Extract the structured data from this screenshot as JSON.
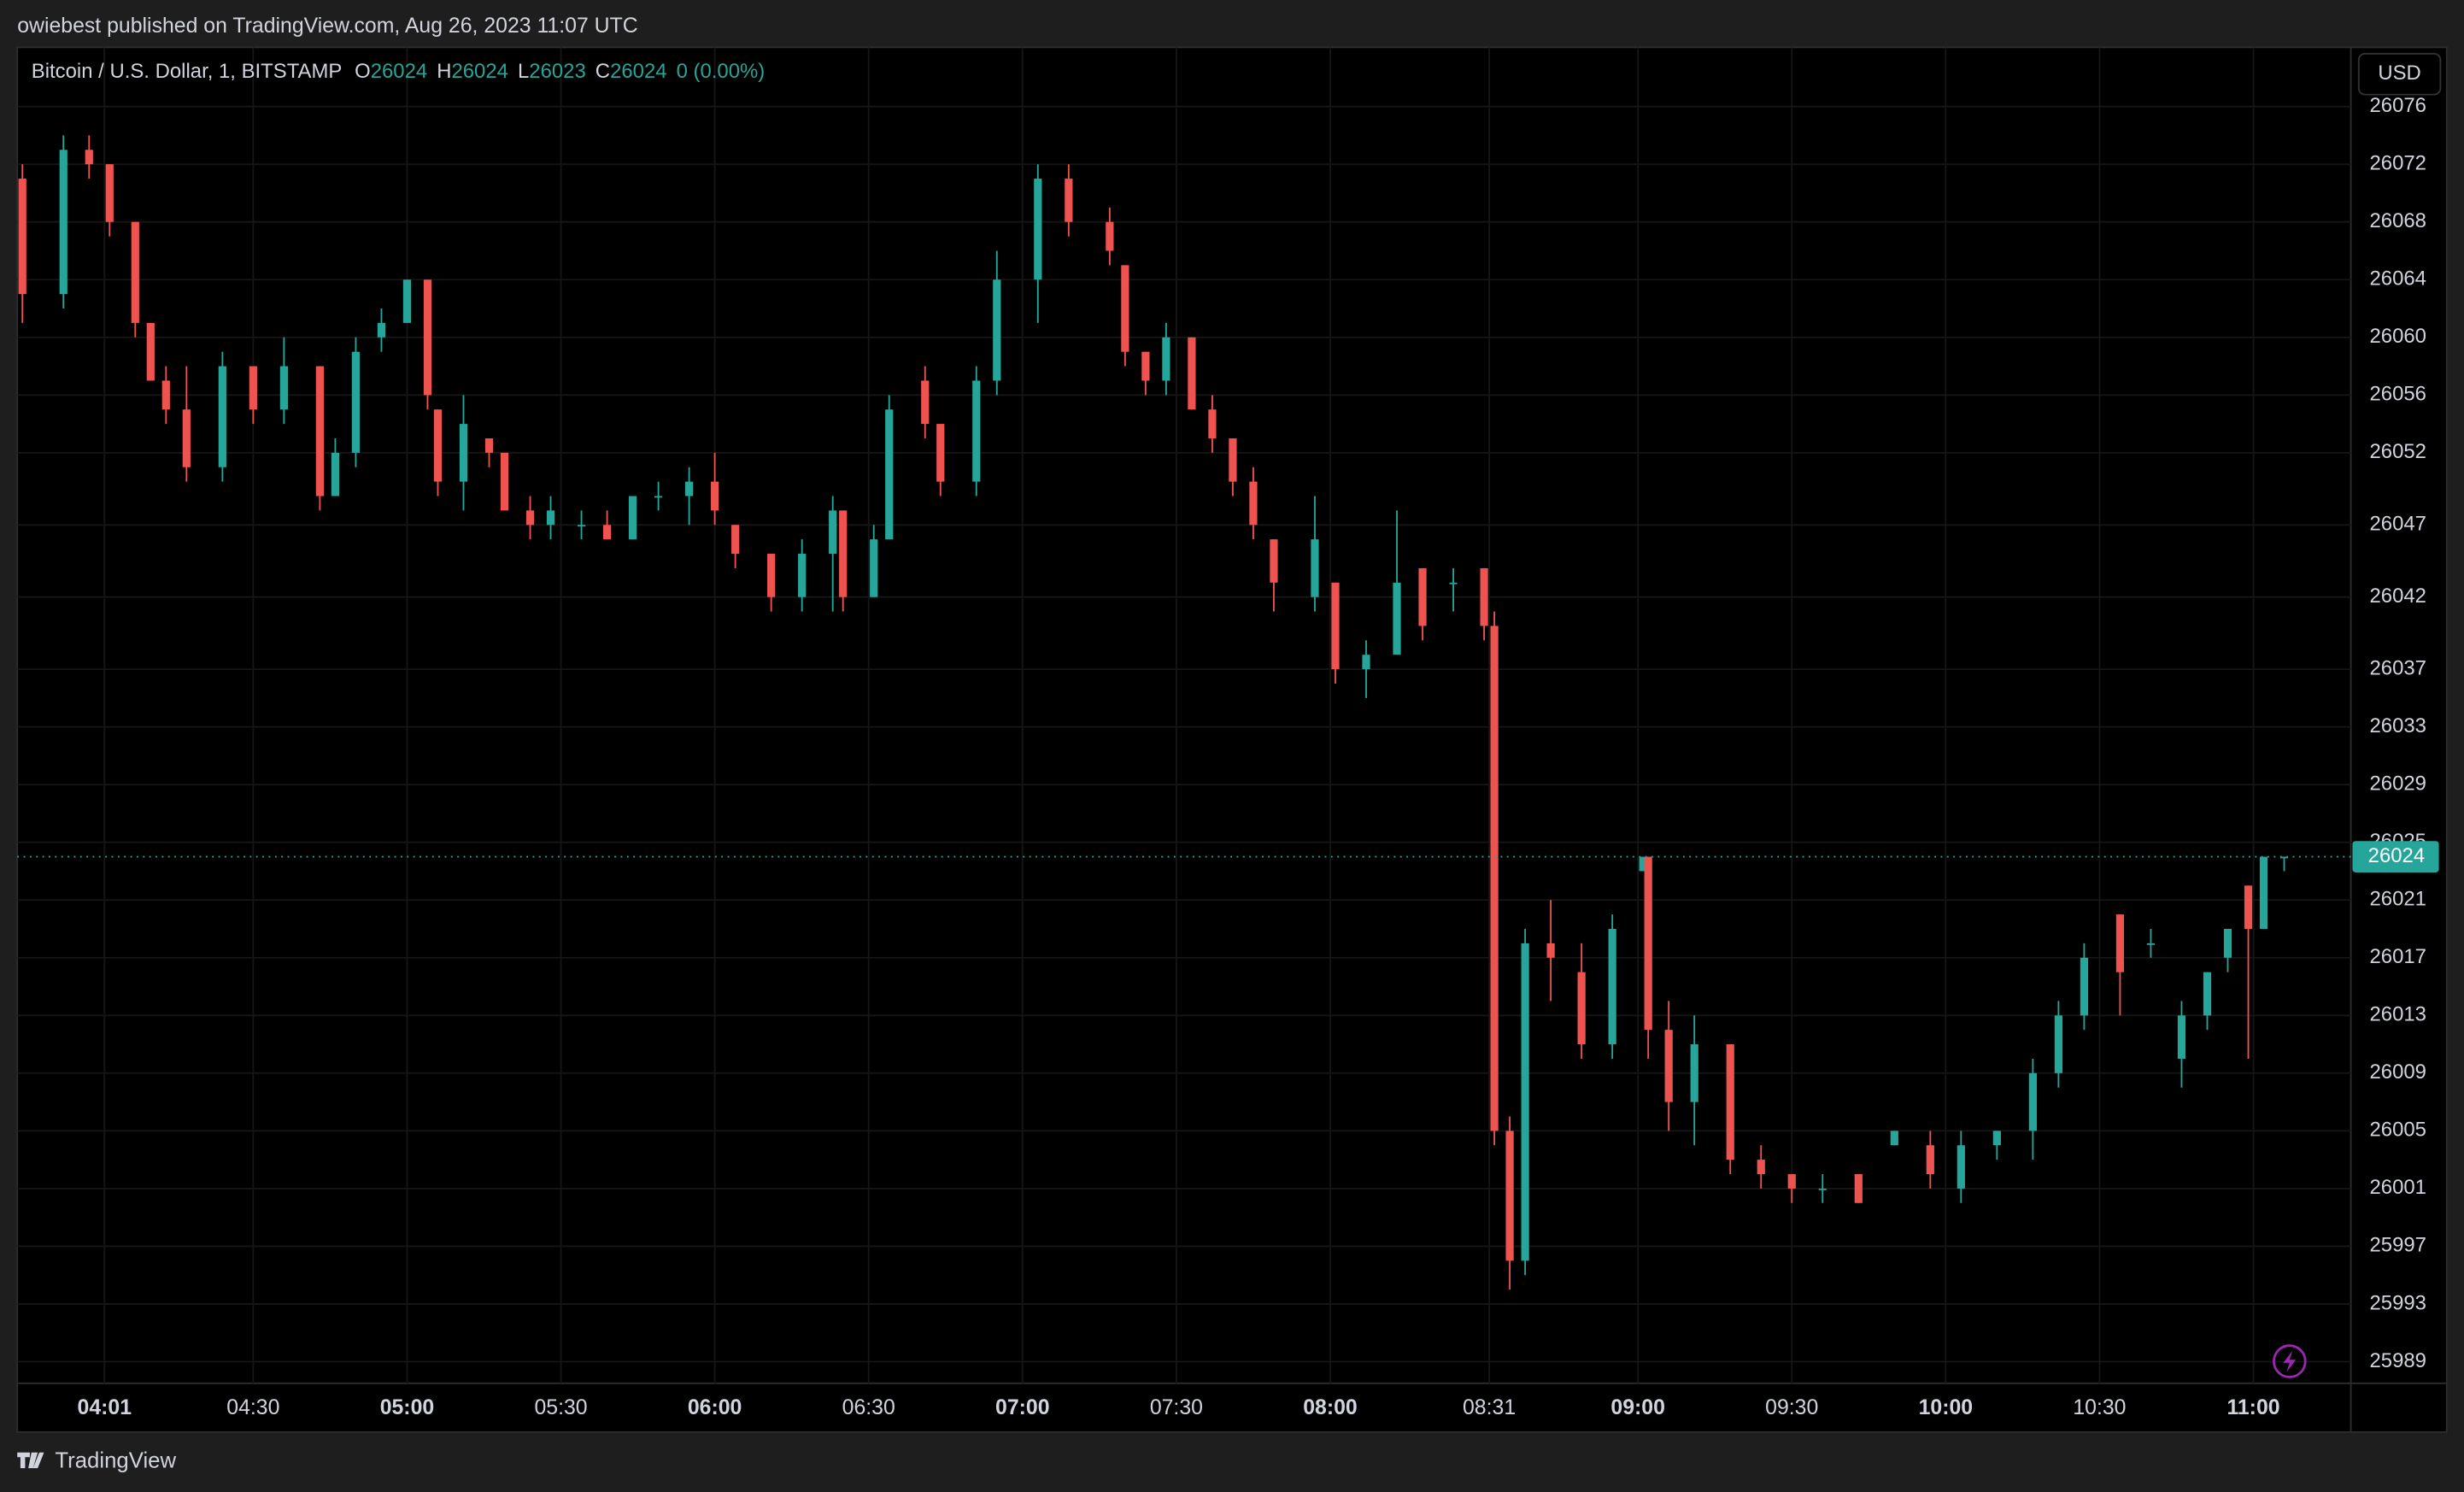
{
  "header": {
    "byline": "owiebest published on TradingView.com, Aug 26, 2023 11:07 UTC"
  },
  "footer": {
    "brand": "TradingView"
  },
  "chart_data": {
    "type": "candlestick",
    "legend": {
      "symbol": "Bitcoin / U.S. Dollar, 1, BITSTAMP",
      "items": [
        {
          "label": "O",
          "value": 26024
        },
        {
          "label": "H",
          "value": 26024
        },
        {
          "label": "L",
          "value": 26023
        },
        {
          "label": "C",
          "value": 26024
        }
      ],
      "change": "0 (0.00%)"
    },
    "currency": "USD",
    "last_price": 26024,
    "up_color": "#26a69a",
    "down_color": "#ef5350",
    "grid": true,
    "xlim": [
      "03:44",
      "11:19"
    ],
    "xticks": [
      "04:01",
      "04:30",
      "05:00",
      "05:30",
      "06:00",
      "06:30",
      "07:00",
      "07:30",
      "08:00",
      "08:31",
      "09:00",
      "09:30",
      "10:00",
      "10:30",
      "11:00"
    ],
    "ylim": [
      25987.5,
      26080.1
    ],
    "yticks": [
      26076,
      26072,
      26068,
      26064,
      26060,
      26056,
      26052,
      26047,
      26042,
      26037,
      26033,
      26029,
      26025,
      26021,
      26017,
      26013,
      26009,
      26005,
      26001,
      25997,
      25993,
      25989
    ],
    "x": [
      "03:45",
      "03:53",
      "03:58",
      "04:02",
      "04:07",
      "04:10",
      "04:13",
      "04:17",
      "04:24",
      "04:30",
      "04:36",
      "04:43",
      "04:46",
      "04:50",
      "04:55",
      "05:00",
      "05:04",
      "05:06",
      "05:11",
      "05:16",
      "05:19",
      "05:24",
      "05:28",
      "05:34",
      "05:39",
      "05:44",
      "05:49",
      "05:55",
      "06:00",
      "06:04",
      "06:11",
      "06:17",
      "06:23",
      "06:25",
      "06:31",
      "06:34",
      "06:41",
      "06:44",
      "06:51",
      "06:55",
      "07:03",
      "07:09",
      "07:17",
      "07:20",
      "07:24",
      "07:28",
      "07:33",
      "07:37",
      "07:41",
      "07:45",
      "07:49",
      "07:57",
      "08:01",
      "08:07",
      "08:13",
      "08:18",
      "08:24",
      "08:30",
      "08:32",
      "08:35",
      "08:38",
      "08:43",
      "08:49",
      "08:55",
      "09:01",
      "09:02",
      "09:06",
      "09:11",
      "09:18",
      "09:24",
      "09:30",
      "09:36",
      "09:43",
      "09:50",
      "09:57",
      "10:03",
      "10:10",
      "10:17",
      "10:22",
      "10:27",
      "10:34",
      "10:40",
      "10:46",
      "10:51",
      "10:55",
      "10:59",
      "11:02",
      "11:06"
    ],
    "open": [
      26071,
      26063,
      26073,
      26072,
      26068,
      26061,
      26057,
      26055,
      26051,
      26058,
      26055,
      26058,
      26049,
      26052,
      26060,
      26061,
      26064,
      26055,
      26050,
      26053,
      26052,
      26048,
      26047,
      26047,
      26047,
      26046,
      26049,
      26049,
      26050,
      26047,
      26045,
      26042,
      26045,
      26048,
      26042,
      26046,
      26057,
      26054,
      26050,
      26057,
      26064,
      26071,
      26068,
      26065,
      26059,
      26057,
      26060,
      26055,
      26053,
      26050,
      26046,
      26042,
      26043,
      26037,
      26038,
      26044,
      26043,
      26044,
      26040,
      26005,
      25996,
      26018,
      26016,
      26011,
      26023,
      26024,
      26012,
      26007,
      26011,
      26003,
      26002,
      26001,
      26002,
      26004,
      26004,
      26001,
      26004,
      26005,
      26009,
      26013,
      26020,
      26018,
      26010,
      26013,
      26017,
      26022,
      26019,
      26024
    ],
    "high": [
      26072,
      26074,
      26074,
      26072,
      26068,
      26061,
      26058,
      26058,
      26059,
      26058,
      26060,
      26058,
      26053,
      26060,
      26062,
      26064,
      26064,
      26055,
      26056,
      26053,
      26052,
      26049,
      26049,
      26048,
      26048,
      26049,
      26050,
      26051,
      26052,
      26047,
      26045,
      26046,
      26049,
      26048,
      26047,
      26056,
      26058,
      26054,
      26058,
      26066,
      26072,
      26072,
      26069,
      26065,
      26059,
      26061,
      26060,
      26056,
      26053,
      26051,
      26046,
      26049,
      26043,
      26039,
      26048,
      26044,
      26044,
      26044,
      26041,
      26006,
      26019,
      26021,
      26018,
      26020,
      26024,
      26024,
      26014,
      26013,
      26011,
      26004,
      26002,
      26002,
      26002,
      26005,
      26005,
      26005,
      26005,
      26010,
      26014,
      26018,
      26020,
      26019,
      26014,
      26016,
      26019,
      26022,
      26024,
      26024
    ],
    "low": [
      26061,
      26062,
      26071,
      26067,
      26060,
      26057,
      26054,
      26050,
      26050,
      26054,
      26054,
      26048,
      26049,
      26051,
      26059,
      26061,
      26055,
      26049,
      26048,
      26051,
      26048,
      26046,
      26046,
      26046,
      26046,
      26046,
      26048,
      26047,
      26047,
      26044,
      26041,
      26041,
      26041,
      26041,
      26042,
      26046,
      26053,
      26049,
      26049,
      26056,
      26061,
      26067,
      26065,
      26058,
      26056,
      26056,
      26055,
      26052,
      26049,
      26046,
      26041,
      26041,
      26036,
      26035,
      26038,
      26039,
      26041,
      26039,
      26004,
      25994,
      25995,
      26014,
      26010,
      26010,
      26023,
      26010,
      26005,
      26004,
      26002,
      26001,
      26000,
      26000,
      26000,
      26004,
      26001,
      26000,
      26003,
      26003,
      26008,
      26012,
      26013,
      26017,
      26008,
      26012,
      26016,
      26010,
      26019,
      26023
    ],
    "close": [
      26063,
      26073,
      26072,
      26068,
      26061,
      26057,
      26055,
      26051,
      26058,
      26055,
      26058,
      26049,
      26052,
      26059,
      26061,
      26064,
      26056,
      26050,
      26054,
      26052,
      26048,
      26047,
      26048,
      26047,
      26046,
      26049,
      26049,
      26050,
      26048,
      26045,
      26042,
      26045,
      26048,
      26042,
      26046,
      26055,
      26054,
      26050,
      26057,
      26064,
      26071,
      26068,
      26066,
      26059,
      26057,
      26060,
      26055,
      26053,
      26050,
      26047,
      26043,
      26046,
      26037,
      26038,
      26043,
      26040,
      26043,
      26040,
      26005,
      25996,
      26018,
      26017,
      26011,
      26019,
      26024,
      26012,
      26007,
      26011,
      26003,
      26002,
      26001,
      26001,
      26000,
      26005,
      26002,
      26004,
      26005,
      26009,
      26013,
      26017,
      26016,
      26018,
      26013,
      26016,
      26019,
      26019,
      26024,
      26024
    ]
  }
}
